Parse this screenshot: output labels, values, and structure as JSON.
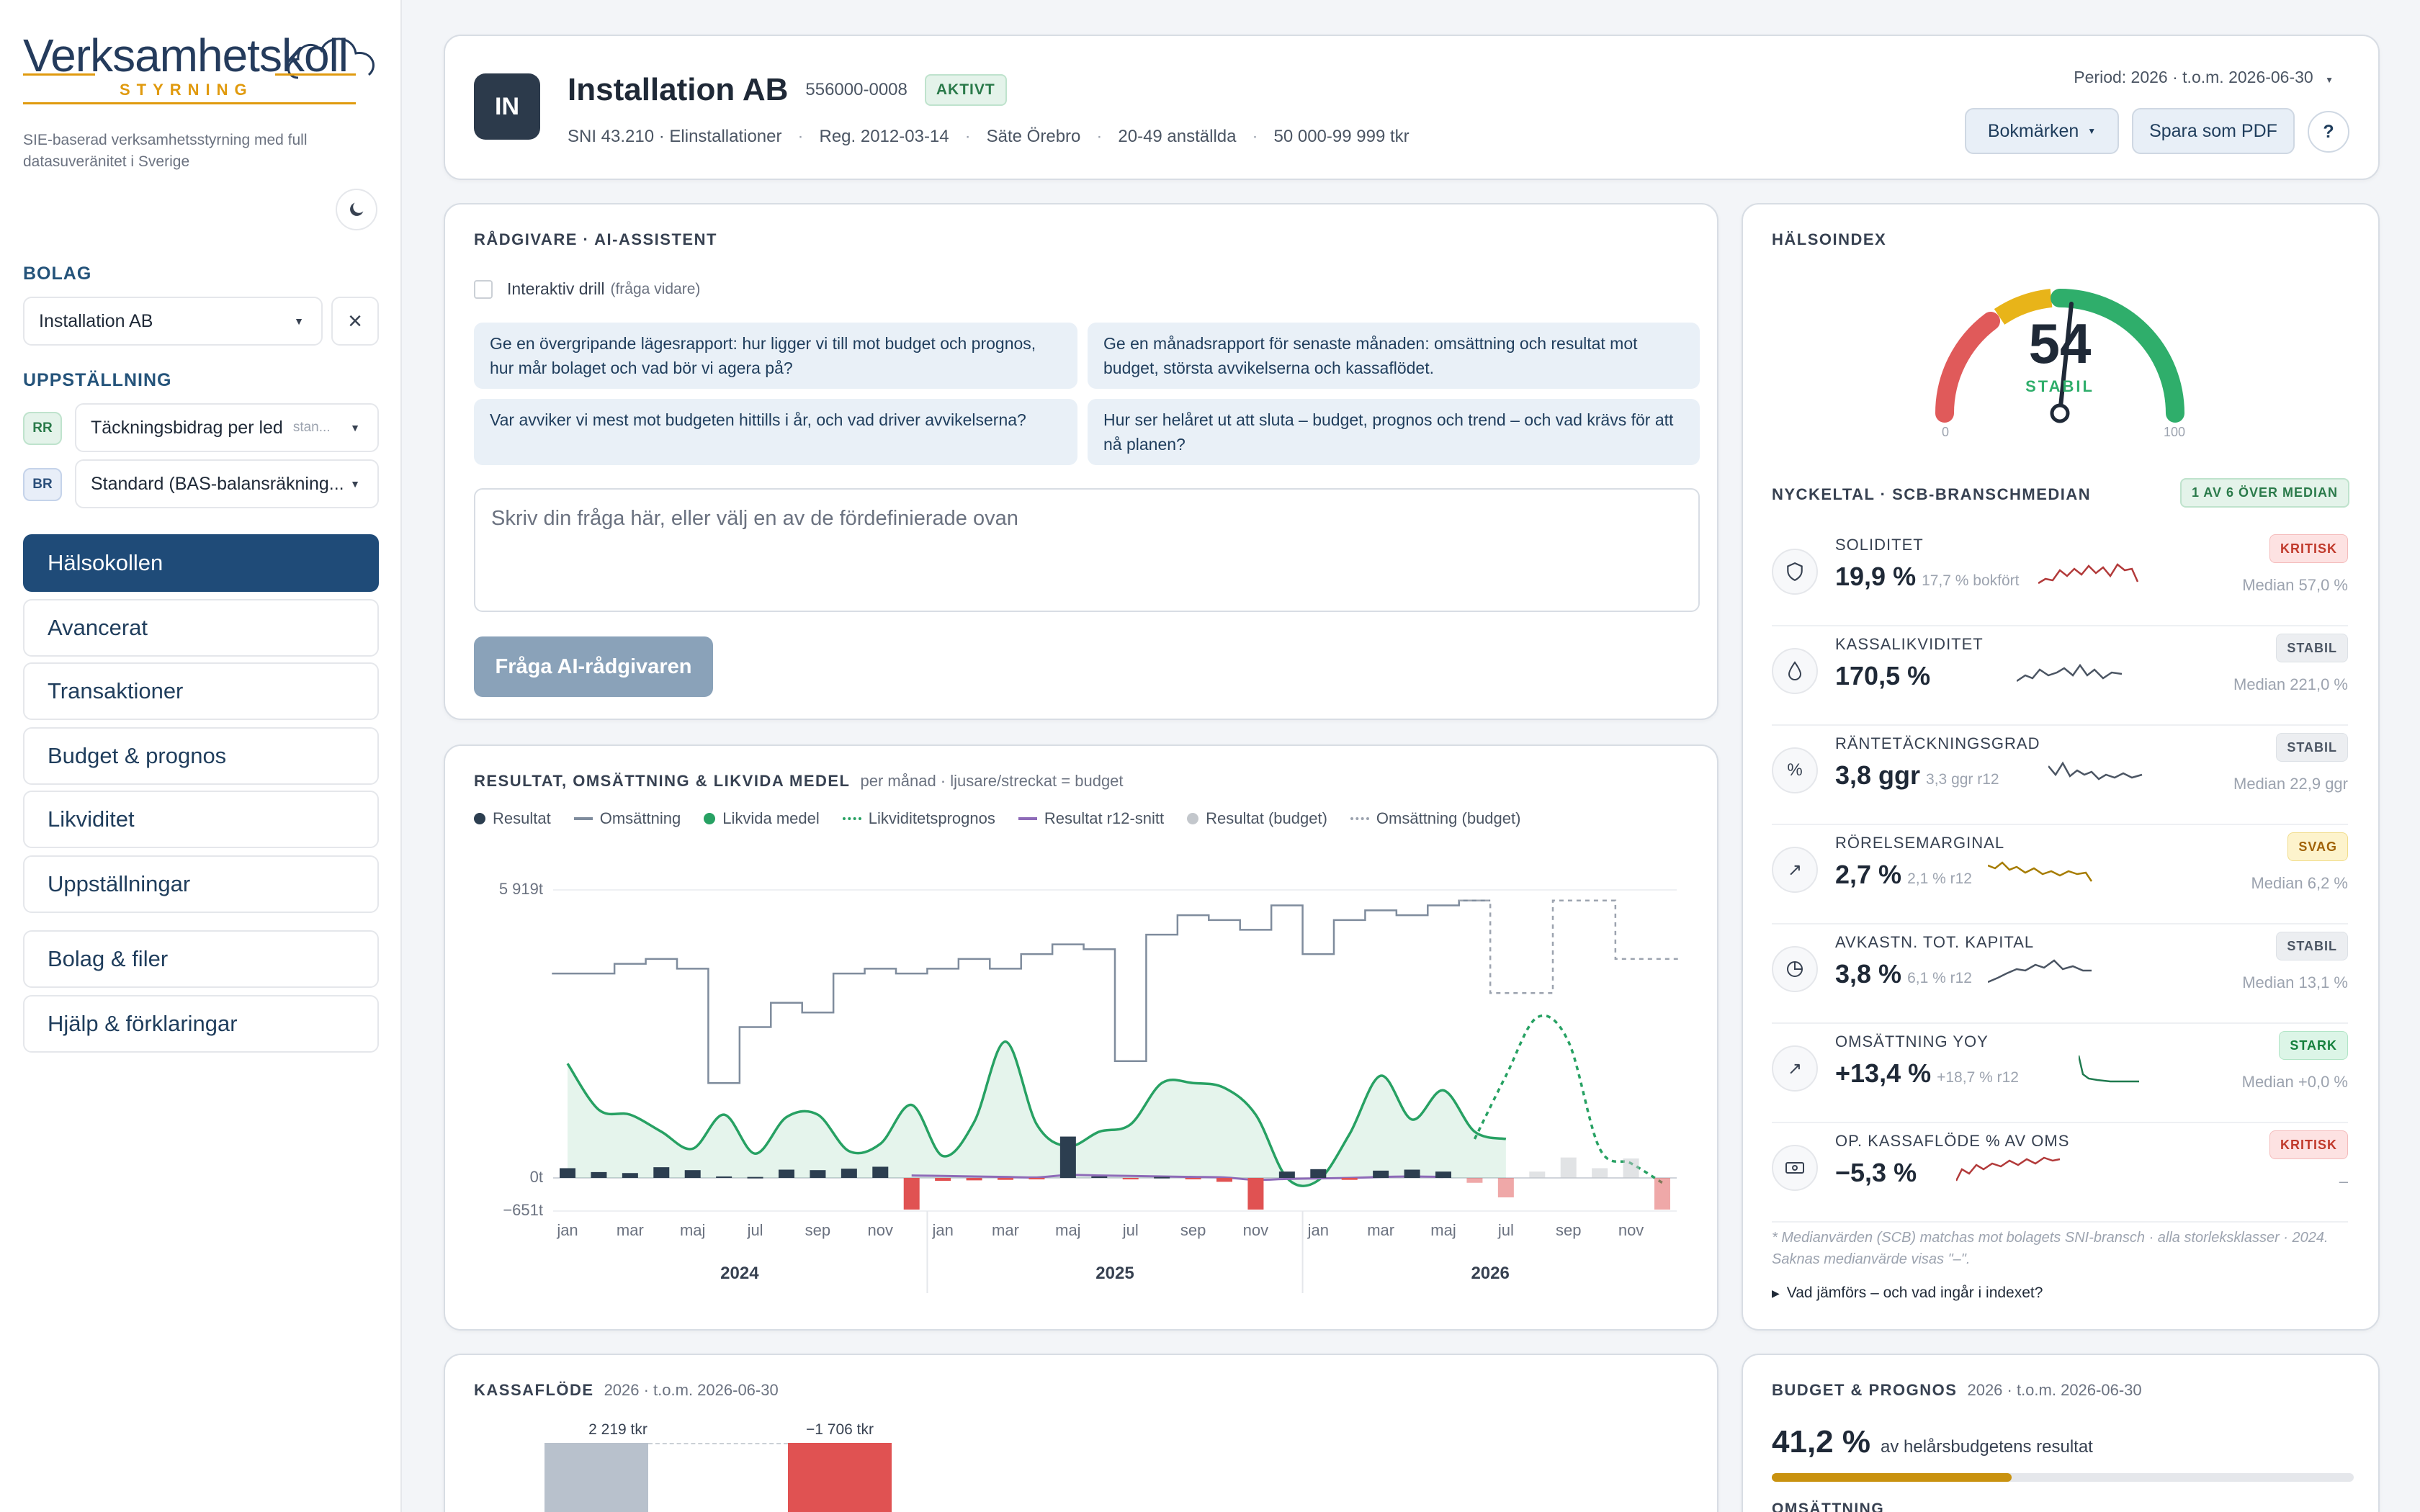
{
  "sidebar": {
    "logo_text": "Verksamhetskoll",
    "logo_sub": "STYRNING",
    "tagline": "SIE-baserad verksamhetsstyrning med full datasuveränitet i Sverige",
    "bolag_label": "BOLAG",
    "bolag_value": "Installation AB",
    "uppstallning_label": "UPPSTÄLLNING",
    "rr_badge": "RR",
    "rr_value": "Täckningsbidrag per led",
    "rr_hint": "stan...",
    "br_badge": "BR",
    "br_value": "Standard (BAS-balansräkning...",
    "nav": [
      "Hälsokollen",
      "Avancerat",
      "Transaktioner",
      "Budget & prognos",
      "Likviditet",
      "Uppställningar",
      "Bolag & filer",
      "Hjälp & förklaringar"
    ]
  },
  "header": {
    "avatar": "IN",
    "company": "Installation AB",
    "org_nr": "556000-0008",
    "status": "AKTIVT",
    "meta": [
      "SNI 43.210 · Elinstallationer",
      "Reg. 2012-03-14",
      "Säte Örebro",
      "20-49 anställda",
      "50 000-99 999 tkr"
    ],
    "period": "Period: 2026 · t.o.m. 2026-06-30",
    "bookmarks": "Bokmärken",
    "pdf": "Spara som PDF",
    "help": "?"
  },
  "advisor": {
    "title": "RÅDGIVARE · AI-ASSISTENT",
    "drill_label": "Interaktiv drill",
    "drill_hint": "(fråga vidare)",
    "prompts": [
      "Ge en övergripande lägesrapport: hur ligger vi till mot budget och prognos, hur mår bolaget och vad bör vi agera på?",
      "Ge en månadsrapport för senaste månaden: omsättning och resultat mot budget, största avvikelserna och kassaflödet.",
      "Var avviker vi mest mot budgeten hittills i år, och vad driver avvikelserna?",
      "Hur ser helåret ut att sluta – budget, prognos och trend – och vad krävs för att nå planen?"
    ],
    "placeholder": "Skriv din fråga här, eller välj en av de fördefinierade ovan",
    "ask_button": "Fråga AI-rådgivaren"
  },
  "chart": {
    "title": "RESULTAT, OMSÄTTNING & LIKVIDA MEDEL",
    "subtitle": "per månad · ljusare/streckat = budget",
    "legend": [
      "Resultat",
      "Omsättning",
      "Likvida medel",
      "Likviditetsprognos",
      "Resultat r12-snitt",
      "Resultat (budget)",
      "Omsättning (budget)"
    ],
    "colors": {
      "resultat": "#2c3e50",
      "omsattning": "#7f8c9d",
      "likvida": "#27a163",
      "prognos": "#27a163",
      "r12": "#8e6bb8",
      "resultat_budget": "#c3c7cc",
      "oms_budget": "#9ca3af",
      "negativ": "#e05252"
    }
  },
  "chart_data": {
    "type": "line",
    "y_ticks": [
      "5 919t",
      "0t",
      "−651t"
    ],
    "ylim": [
      -651,
      5919
    ],
    "x_tick_labels": [
      "jan",
      "mar",
      "maj",
      "jul",
      "sep",
      "nov",
      "jan",
      "mar",
      "maj",
      "jul",
      "sep",
      "nov",
      "jan",
      "mar",
      "maj",
      "jul",
      "sep",
      "nov"
    ],
    "years": [
      "2024",
      "2025",
      "2026"
    ],
    "months": 36,
    "omsattning": [
      4200,
      4200,
      4400,
      4500,
      4300,
      1950,
      3100,
      3600,
      3400,
      4200,
      4300,
      4200,
      4300,
      4500,
      4300,
      4600,
      4800,
      4700,
      2400,
      5000,
      5400,
      5300,
      5100,
      5600,
      4600,
      5300,
      5500,
      5400,
      5600,
      5700,
      null,
      null,
      null,
      null,
      null,
      null
    ],
    "omsattning_budget": [
      null,
      null,
      null,
      null,
      null,
      null,
      null,
      null,
      null,
      null,
      null,
      null,
      null,
      null,
      null,
      null,
      null,
      null,
      null,
      null,
      null,
      null,
      null,
      null,
      null,
      null,
      null,
      null,
      null,
      5700,
      3800,
      3800,
      5700,
      5700,
      4500,
      4500
    ],
    "likvida": [
      2350,
      1400,
      1300,
      950,
      600,
      1300,
      500,
      1250,
      1300,
      550,
      700,
      1500,
      450,
      1150,
      2800,
      1100,
      650,
      950,
      1100,
      1950,
      1950,
      1850,
      1300,
      0,
      -50,
      900,
      2100,
      1200,
      1800,
      950,
      800,
      null,
      null,
      null,
      null,
      null
    ],
    "likviditetsprognos": [
      null,
      null,
      null,
      null,
      null,
      null,
      null,
      null,
      null,
      null,
      null,
      null,
      null,
      null,
      null,
      null,
      null,
      null,
      null,
      null,
      null,
      null,
      null,
      null,
      null,
      null,
      null,
      null,
      null,
      800,
      2100,
      3300,
      2800,
      600,
      300,
      -100
    ],
    "resultat": [
      200,
      120,
      100,
      220,
      160,
      30,
      20,
      170,
      160,
      190,
      230,
      -650,
      -60,
      -50,
      -40,
      -30,
      850,
      30,
      -30,
      20,
      -20,
      -80,
      -650,
      130,
      180,
      -40,
      150,
      170,
      130,
      null,
      null,
      null,
      null,
      null,
      null,
      null
    ],
    "resultat_budget": [
      null,
      null,
      null,
      null,
      null,
      null,
      null,
      null,
      null,
      null,
      null,
      null,
      null,
      null,
      null,
      null,
      null,
      null,
      null,
      null,
      null,
      null,
      null,
      null,
      null,
      null,
      null,
      null,
      null,
      -100,
      -400,
      130,
      420,
      200,
      400,
      -650
    ],
    "resultat_r12": [
      null,
      null,
      null,
      null,
      null,
      null,
      null,
      null,
      null,
      null,
      null,
      50,
      40,
      30,
      20,
      10,
      60,
      50,
      40,
      30,
      20,
      10,
      -40,
      -20,
      -10,
      0,
      20,
      30,
      20,
      null,
      null,
      null,
      null,
      null,
      null,
      null
    ]
  },
  "health": {
    "title": "HÄLSOINDEX",
    "score": "54",
    "status": "STABIL",
    "min": "0",
    "max": "100",
    "kpi_title": "NYCKELTAL · SCB-BRANSCHMEDIAN",
    "kpi_badge": "1 AV 6 ÖVER MEDIAN",
    "kpis": [
      {
        "name": "SOLIDITET",
        "value": "19,9 %",
        "sub": "17,7 % bokfört",
        "badge": "KRITISK",
        "median": "Median 57,0 %",
        "icon": "shield-icon"
      },
      {
        "name": "KASSALIKVIDITET",
        "value": "170,5 %",
        "sub": "",
        "badge": "STABIL",
        "median": "Median 221,0 %",
        "icon": "drop-icon"
      },
      {
        "name": "RÄNTETÄCKNINGSGRAD",
        "value": "3,8 ggr",
        "sub": "3,3 ggr r12",
        "badge": "STABIL",
        "median": "Median 22,9 ggr",
        "icon": "percent-icon"
      },
      {
        "name": "RÖRELSEMARGINAL",
        "value": "2,7 %",
        "sub": "2,1 % r12",
        "badge": "SVAG",
        "median": "Median 6,2 %",
        "icon": "trend-up-icon"
      },
      {
        "name": "AVKASTN. TOT. KAPITAL",
        "value": "3,8 %",
        "sub": "6,1 % r12",
        "badge": "STABIL",
        "median": "Median 13,1 %",
        "icon": "pie-icon"
      },
      {
        "name": "OMSÄTTNING YOY",
        "value": "+13,4 %",
        "sub": "+18,7 % r12",
        "badge": "STARK",
        "median": "Median +0,0 %",
        "icon": "trend-up-icon"
      },
      {
        "name": "OP. KASSAFLÖDE % AV OMS",
        "value": "−5,3 %",
        "sub": "",
        "badge": "KRITISK",
        "median": "–",
        "icon": "cash-icon"
      }
    ],
    "footnote": "* Medianvärden (SCB) matchas mot bolagets SNI-bransch · alla storleksklasser · 2024. Saknas medianvärde visas \"–\".",
    "details": "Vad jämförs – och vad ingår i indexet?"
  },
  "cashflow": {
    "title": "KASSAFLÖDE",
    "subtitle": "2026 · t.o.m. 2026-06-30",
    "bar1_label": "2 219 tkr",
    "bar2_label": "−1 706 tkr"
  },
  "budget": {
    "title": "BUDGET & PROGNOS",
    "subtitle": "2026 · t.o.m. 2026-06-30",
    "value": "41,2 %",
    "value_text": "av helårsbudgetens resultat",
    "progress": 0.412,
    "next_label": "OMSÄTTNING"
  }
}
